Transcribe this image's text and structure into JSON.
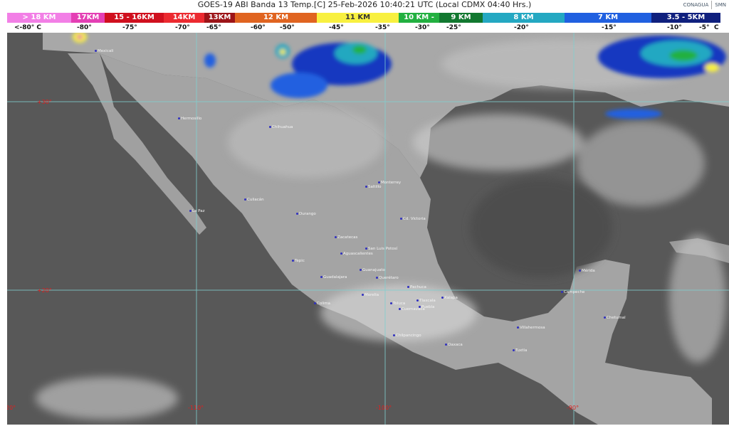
{
  "header": {
    "title": "GOES-19 ABI Banda 13 Temp.[C] 25-Feb-2026 10:40:21 UTC (Local CDMX  04:40 Hrs.)",
    "logo_left": "CONAGUA",
    "logo_right": "SMN"
  },
  "scale": [
    {
      "label": "> 18 KM",
      "color": "#f27fe6"
    },
    {
      "label": "17KM",
      "color": "#e43fb4"
    },
    {
      "label": "15 - 16KM",
      "color": "#d0101e"
    },
    {
      "label": "14KM",
      "color": "#ec2a30"
    },
    {
      "label": "13KM",
      "color": "#9c1418"
    },
    {
      "label": "12 KM",
      "color": "#e06420"
    },
    {
      "label": "11 KM",
      "color": "#f8f040"
    },
    {
      "label": "10 KM -",
      "color": "#22b040"
    },
    {
      "label": "9 KM",
      "color": "#127830"
    },
    {
      "label": "8 KM",
      "color": "#24a8c2"
    },
    {
      "label": "7 KM",
      "color": "#2060e0"
    },
    {
      "label": "3.5 - 5KM",
      "color": "#10207e"
    }
  ],
  "temps": [
    "<-80° C",
    "-80°",
    "-75°",
    "-70°",
    "-65°",
    "-60°",
    "-50°",
    "-45°",
    "-35°",
    "-30°",
    "-25°",
    "-20°",
    "-15°",
    "-10°",
    "-5°",
    "C"
  ],
  "grid": {
    "lat": [
      "+30°",
      "+20°"
    ],
    "lon": [
      "-120°",
      "-110°",
      "-100°",
      "-90°"
    ]
  },
  "cities": [
    "Mexicali",
    "Hermosillo",
    "Chihuahua",
    "Culiacán",
    "La Paz",
    "Durango",
    "Saltillo",
    "Monterrey",
    "Cd. Victoria",
    "Zacatecas",
    "San Luis Potosí",
    "Aguascalientes",
    "Tepic",
    "Guanajuato",
    "Guadalajara",
    "Querétaro",
    "Pachuca",
    "Morelia",
    "Colima",
    "Toluca",
    "Tlaxcala",
    "Puebla",
    "Xalapa",
    "Cuernavaca",
    "Chilpancingo",
    "Oaxaca",
    "Villahermosa",
    "Tuxtla",
    "Mérida",
    "Campeche",
    "Chetumal"
  ],
  "colors": {
    "ocean": "#585858",
    "land": "#9c9c9c",
    "gridline": "#7fd0d0",
    "grid_label": "#e02020"
  }
}
